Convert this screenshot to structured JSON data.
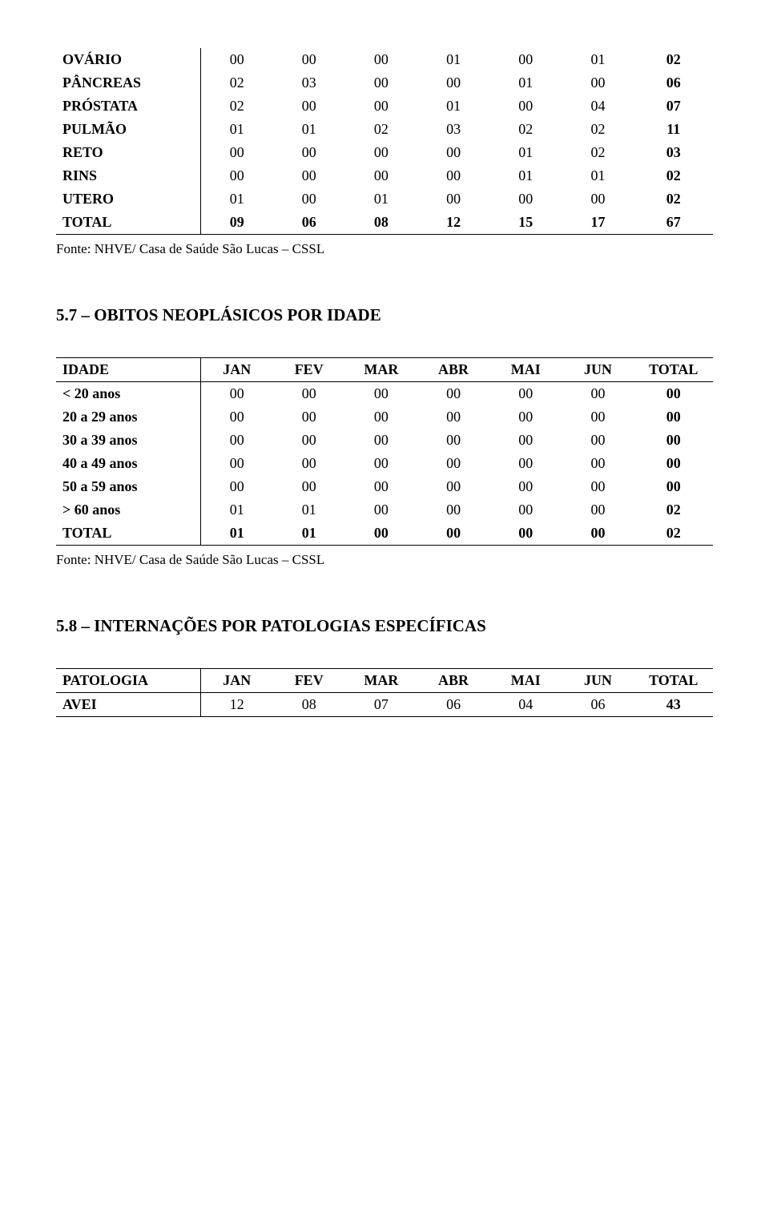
{
  "table1": {
    "rows": [
      {
        "label": "OVÁRIO",
        "vals": [
          "00",
          "00",
          "00",
          "01",
          "00",
          "01",
          "02"
        ],
        "bold_label": true,
        "bold_last": true
      },
      {
        "label": "PÂNCREAS",
        "vals": [
          "02",
          "03",
          "00",
          "00",
          "01",
          "00",
          "06"
        ],
        "bold_label": true,
        "bold_last": true
      },
      {
        "label": "PRÓSTATA",
        "vals": [
          "02",
          "00",
          "00",
          "01",
          "00",
          "04",
          "07"
        ],
        "bold_label": true,
        "bold_last": true
      },
      {
        "label": "PULMÃO",
        "vals": [
          "01",
          "01",
          "02",
          "03",
          "02",
          "02",
          "11"
        ],
        "bold_label": true,
        "bold_last": true
      },
      {
        "label": "RETO",
        "vals": [
          "00",
          "00",
          "00",
          "00",
          "01",
          "02",
          "03"
        ],
        "bold_label": true,
        "bold_last": true
      },
      {
        "label": "RINS",
        "vals": [
          "00",
          "00",
          "00",
          "00",
          "01",
          "01",
          "02"
        ],
        "bold_label": true,
        "bold_last": true
      },
      {
        "label": "UTERO",
        "vals": [
          "01",
          "00",
          "01",
          "00",
          "00",
          "00",
          "02"
        ],
        "bold_label": true,
        "bold_last": true
      },
      {
        "label": "TOTAL",
        "vals": [
          "09",
          "06",
          "08",
          "12",
          "15",
          "17",
          "67"
        ],
        "bold_label": true,
        "bold_all": true
      }
    ],
    "source": "Fonte: NHVE/ Casa de Saúde São Lucas – CSSL"
  },
  "section2": {
    "title": "5.7 – OBITOS NEOPLÁSICOS POR IDADE"
  },
  "table2": {
    "headers": [
      "IDADE",
      "JAN",
      "FEV",
      "MAR",
      "ABR",
      "MAI",
      "JUN",
      "TOTAL"
    ],
    "rows": [
      {
        "label": "< 20 anos",
        "vals": [
          "00",
          "00",
          "00",
          "00",
          "00",
          "00",
          "00"
        ],
        "bold_label": true,
        "bold_last": true
      },
      {
        "label": "20 a 29 anos",
        "vals": [
          "00",
          "00",
          "00",
          "00",
          "00",
          "00",
          "00"
        ],
        "bold_label": true,
        "bold_last": true
      },
      {
        "label": "30 a 39 anos",
        "vals": [
          "00",
          "00",
          "00",
          "00",
          "00",
          "00",
          "00"
        ],
        "bold_label": true,
        "bold_last": true
      },
      {
        "label": "40 a 49 anos",
        "vals": [
          "00",
          "00",
          "00",
          "00",
          "00",
          "00",
          "00"
        ],
        "bold_label": true,
        "bold_last": true
      },
      {
        "label": "50 a 59 anos",
        "vals": [
          "00",
          "00",
          "00",
          "00",
          "00",
          "00",
          "00"
        ],
        "bold_label": true,
        "bold_last": true
      },
      {
        "label": "> 60 anos",
        "vals": [
          "01",
          "01",
          "00",
          "00",
          "00",
          "00",
          "02"
        ],
        "bold_label": true,
        "bold_last": true
      },
      {
        "label": "TOTAL",
        "vals": [
          "01",
          "01",
          "00",
          "00",
          "00",
          "00",
          "02"
        ],
        "bold_label": true,
        "bold_all": true
      }
    ],
    "source": "Fonte: NHVE/ Casa de Saúde São Lucas – CSSL"
  },
  "section3": {
    "title": "5.8 – INTERNAÇÕES POR PATOLOGIAS ESPECÍFICAS"
  },
  "table3": {
    "headers": [
      "PATOLOGIA",
      "JAN",
      "FEV",
      "MAR",
      "ABR",
      "MAI",
      "JUN",
      "TOTAL"
    ],
    "rows": [
      {
        "label": "AVEI",
        "vals": [
          "12",
          "08",
          "07",
          "06",
          "04",
          "06",
          "43"
        ],
        "bold_label": true,
        "bold_last": true
      }
    ]
  },
  "layout": {
    "col_widths_pct": [
      22,
      11,
      11,
      11,
      11,
      11,
      11,
      12
    ]
  }
}
